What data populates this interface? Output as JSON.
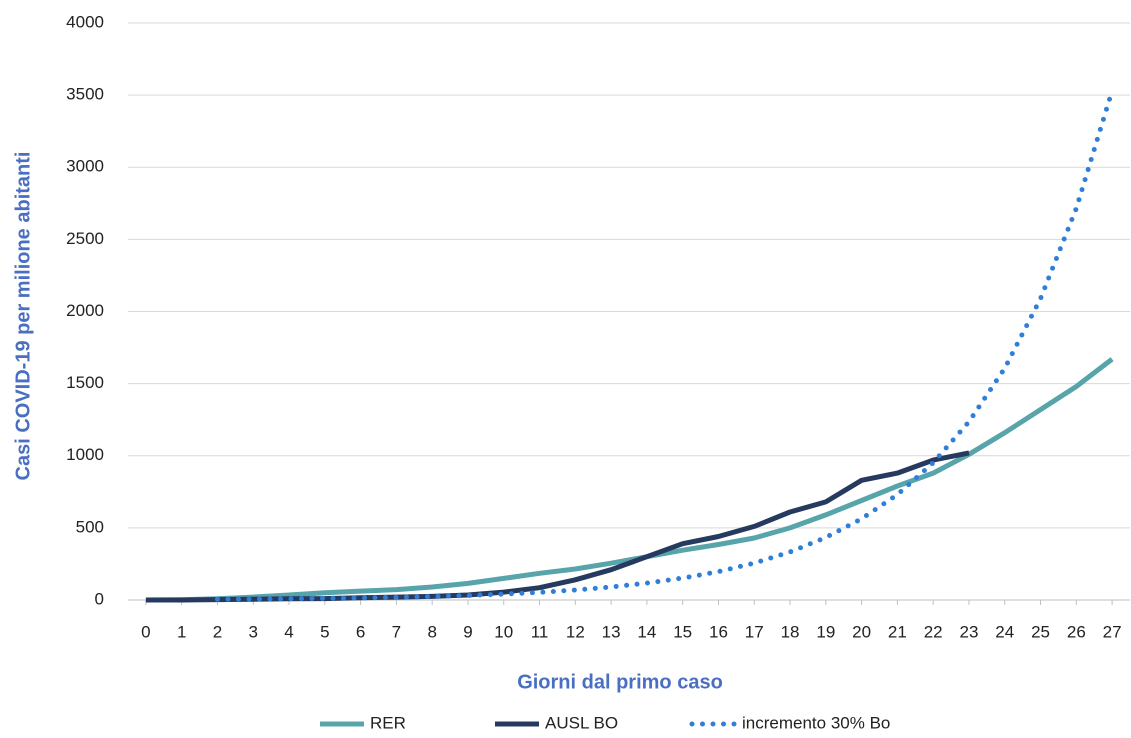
{
  "chart_data": {
    "type": "line",
    "y_label": "Casi COVID-19 per milione abitanti",
    "x_label": "Giorni dal primo caso",
    "x": [
      0,
      1,
      2,
      3,
      4,
      5,
      6,
      7,
      8,
      9,
      10,
      11,
      12,
      13,
      14,
      15,
      16,
      17,
      18,
      19,
      20,
      21,
      22,
      23,
      24,
      25,
      26,
      27
    ],
    "xlim": [
      -0.5,
      27.5
    ],
    "xticks": [
      0,
      1,
      2,
      3,
      4,
      5,
      6,
      7,
      8,
      9,
      10,
      11,
      12,
      13,
      14,
      15,
      16,
      17,
      18,
      19,
      20,
      21,
      22,
      23,
      24,
      25,
      26,
      27
    ],
    "ylim": [
      0,
      4000
    ],
    "yticks": [
      0,
      500,
      1000,
      1500,
      2000,
      2500,
      3000,
      3500,
      4000
    ],
    "grid": true,
    "legend": "bottom",
    "series": [
      {
        "name": "RER",
        "color": "#58a4ab",
        "style": "solid",
        "values": [
          0,
          2,
          8,
          20,
          35,
          50,
          62,
          72,
          90,
          115,
          150,
          185,
          215,
          255,
          300,
          345,
          385,
          430,
          500,
          590,
          690,
          790,
          880,
          1010,
          1160,
          1320,
          1480,
          1670
        ]
      },
      {
        "name": "AUSL BO",
        "color": "#253a5e",
        "style": "solid",
        "values": [
          0,
          0,
          3,
          5,
          8,
          10,
          15,
          20,
          25,
          35,
          55,
          85,
          140,
          210,
          300,
          390,
          440,
          510,
          610,
          680,
          830,
          880,
          970,
          1020,
          null,
          null,
          null,
          null
        ]
      },
      {
        "name": "incremento 30% Bo",
        "color": "#2f7fd8",
        "style": "dotted",
        "values": [
          null,
          null,
          5,
          6,
          8,
          11,
          14,
          19,
          24,
          31,
          41,
          53,
          69,
          90,
          117,
          152,
          197,
          256,
          333,
          433,
          563,
          731,
          951,
          1236,
          1607,
          2089,
          2715,
          3530
        ]
      }
    ]
  }
}
